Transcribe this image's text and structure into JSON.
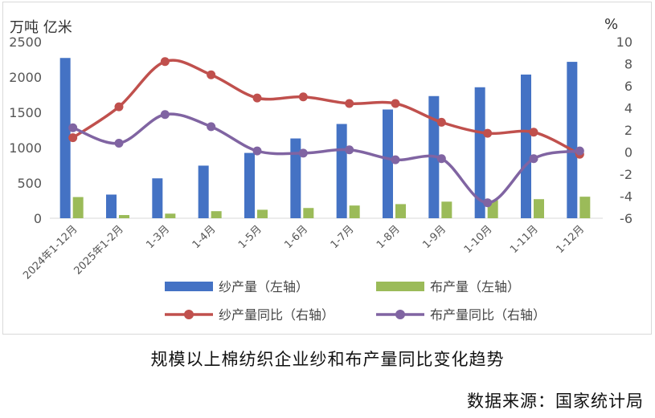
{
  "chart_data": {
    "type": "bar",
    "left_unit": "万吨 亿米",
    "right_unit": "%",
    "categories": [
      "2024年1-12月",
      "2025年1-2月",
      "1-3月",
      "1-4月",
      "1-5月",
      "1-6月",
      "1-7月",
      "1-8月",
      "1-9月",
      "1-10月",
      "1-11月",
      "1-12月"
    ],
    "left_axis": {
      "min": 0,
      "max": 2500,
      "ticks": [
        0,
        500,
        1000,
        1500,
        2000,
        2500
      ]
    },
    "right_axis": {
      "min": -6,
      "max": 10,
      "ticks": [
        -6,
        -4,
        -2,
        0,
        2,
        4,
        6,
        8,
        10
      ]
    },
    "series": [
      {
        "name": "纱产量（左轴）",
        "type": "bar",
        "axis": "left",
        "color": "#4472C4",
        "values": [
          2270,
          335,
          565,
          745,
          925,
          1130,
          1335,
          1540,
          1730,
          1855,
          2035,
          2215
        ]
      },
      {
        "name": "布产量（左轴）",
        "type": "bar",
        "axis": "left",
        "color": "#9BBB59",
        "values": [
          300,
          45,
          65,
          100,
          120,
          145,
          180,
          200,
          235,
          255,
          270,
          305
        ]
      },
      {
        "name": "纱产量同比（右轴）",
        "type": "line",
        "axis": "right",
        "color": "#C0504D",
        "values": [
          1.3,
          4.1,
          8.2,
          7.0,
          4.9,
          5.0,
          4.4,
          4.4,
          2.7,
          1.7,
          1.8,
          -0.2
        ]
      },
      {
        "name": "布产量同比（右轴）",
        "type": "line",
        "axis": "right",
        "color": "#8064A2",
        "values": [
          2.2,
          0.8,
          3.4,
          2.3,
          0.1,
          -0.1,
          0.2,
          -0.7,
          -0.6,
          -4.6,
          -0.6,
          0.1
        ]
      }
    ],
    "legend_position": "bottom",
    "grid": false
  },
  "caption": "规模以上棉纺织企业纱和布产量同比变化趋势",
  "source": "数据来源：国家统计局"
}
